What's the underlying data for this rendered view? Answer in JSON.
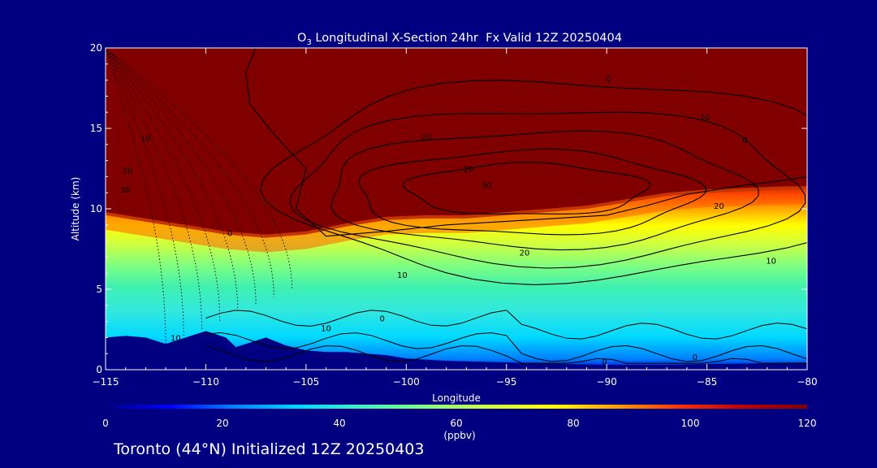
{
  "chart_data": {
    "type": "heatmap",
    "title_prefix": "O",
    "title_subscript": "3",
    "title_rest": " Longitudinal X-Section 24hr  Fx Valid 12Z 20250404",
    "xlabel": "Longitude",
    "ylabel": "Altitude (km)",
    "xlim": [
      -115,
      -80
    ],
    "ylim": [
      0,
      20
    ],
    "x_ticks": [
      -115,
      -110,
      -105,
      -100,
      -95,
      -90,
      -85,
      -80
    ],
    "x_tick_labels": [
      "−115",
      "−110",
      "−105",
      "−100",
      "−95",
      "−90",
      "−85",
      "−80"
    ],
    "y_ticks": [
      0,
      5,
      10,
      15,
      20
    ],
    "y_tick_labels": [
      "0",
      "5",
      "10",
      "15",
      "20"
    ],
    "colorbar": {
      "label": "(ppbv)",
      "min": 0,
      "max": 120,
      "ticks": [
        0,
        20,
        40,
        60,
        80,
        100,
        120
      ],
      "tick_labels": [
        "0",
        "20",
        "40",
        "60",
        "80",
        "100",
        "120"
      ],
      "colors": [
        "#000080",
        "#0000ff",
        "#0080ff",
        "#00d8ff",
        "#40f0c0",
        "#80ff80",
        "#d0ff40",
        "#ffff00",
        "#ffa000",
        "#ff3000",
        "#c00000",
        "#800000"
      ]
    },
    "terrain_profile": {
      "lon": [
        -115,
        -114,
        -113,
        -112,
        -111,
        -110,
        -109,
        -108.5,
        -107.5,
        -107,
        -106,
        -105,
        -104,
        -103,
        -102,
        -101,
        -100,
        -98,
        -95,
        -92,
        -90,
        -87,
        -85,
        -82,
        -80
      ],
      "alt": [
        2.0,
        2.1,
        2.0,
        1.6,
        2.0,
        2.4,
        2.0,
        1.4,
        1.8,
        2.0,
        1.5,
        1.2,
        1.1,
        1.1,
        1.0,
        0.9,
        0.7,
        0.55,
        0.45,
        0.35,
        0.3,
        0.3,
        0.35,
        0.4,
        0.45
      ]
    },
    "tropopause_high_o3_base": {
      "lon": [
        -115,
        -113,
        -111,
        -109,
        -107,
        -105,
        -103,
        -101,
        -99,
        -97,
        -95,
        -93,
        -91,
        -89,
        -87,
        -85,
        -83,
        -81,
        -80
      ],
      "alt": [
        9.6,
        9.2,
        8.8,
        8.4,
        8.2,
        8.4,
        8.9,
        9.3,
        9.4,
        9.4,
        9.6,
        9.8,
        10.0,
        10.4,
        10.8,
        11.0,
        11.1,
        11.2,
        11.2
      ]
    },
    "contour_labels": [
      {
        "text": "0",
        "lon": -108.8,
        "alt": 8.3
      },
      {
        "text": "0",
        "lon": -89.9,
        "alt": 17.9
      },
      {
        "text": "0",
        "lon": -85.6,
        "alt": 0.6
      },
      {
        "text": "0",
        "lon": -90.1,
        "alt": 0.3
      },
      {
        "text": "0",
        "lon": -83.1,
        "alt": 14.1
      },
      {
        "text": "0",
        "lon": -101.2,
        "alt": 3.0
      },
      {
        "text": "10",
        "lon": -113.0,
        "alt": 14.2
      },
      {
        "text": "10",
        "lon": -111.5,
        "alt": 1.8
      },
      {
        "text": "10",
        "lon": -104.0,
        "alt": 2.4
      },
      {
        "text": "10",
        "lon": -100.2,
        "alt": 5.7
      },
      {
        "text": "10",
        "lon": -99.0,
        "alt": 14.3
      },
      {
        "text": "10",
        "lon": -85.1,
        "alt": 15.5
      },
      {
        "text": "10",
        "lon": -81.8,
        "alt": 6.6
      },
      {
        "text": "20",
        "lon": -113.9,
        "alt": 12.2
      },
      {
        "text": "20",
        "lon": -96.9,
        "alt": 12.3
      },
      {
        "text": "20",
        "lon": -94.1,
        "alt": 7.1
      },
      {
        "text": "20",
        "lon": -84.4,
        "alt": 10.0
      },
      {
        "text": "30",
        "lon": -114.0,
        "alt": 11.0
      },
      {
        "text": "30",
        "lon": -96.0,
        "alt": 11.3
      }
    ],
    "caption": "Toronto (44°N) Initialized 12Z 20250403"
  }
}
